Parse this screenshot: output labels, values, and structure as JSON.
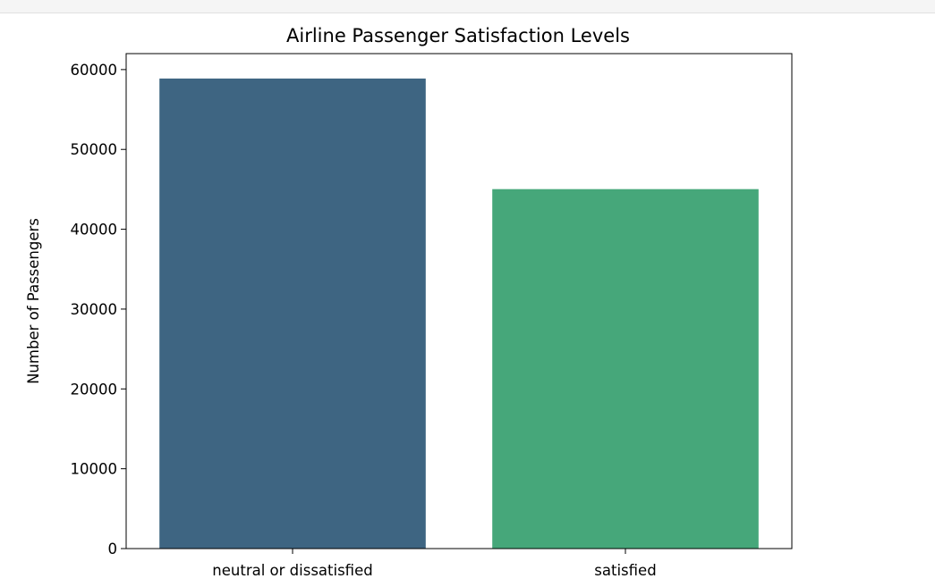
{
  "chart_data": {
    "type": "bar",
    "title": "Airline Passenger Satisfaction Levels",
    "xlabel": "",
    "ylabel": "Number of Passengers",
    "categories": [
      "neutral or dissatisfied",
      "satisfied"
    ],
    "values": [
      58879,
      45025
    ],
    "colors": [
      "#3e6582",
      "#46a77a"
    ],
    "ylim": [
      0,
      62000
    ],
    "yticks": [
      0,
      10000,
      20000,
      30000,
      40000,
      50000,
      60000
    ],
    "ytick_labels": [
      "0",
      "10000",
      "20000",
      "30000",
      "40000",
      "50000",
      "60000"
    ],
    "grid": false,
    "legend": "none"
  }
}
